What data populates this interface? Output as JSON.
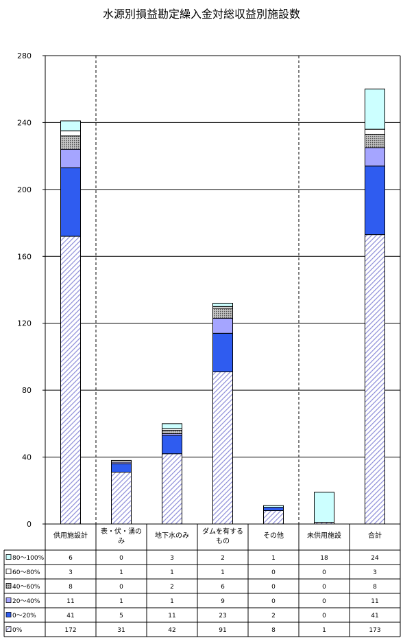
{
  "chart_data": {
    "type": "bar",
    "stacked": true,
    "title": "水源別損益勘定繰入金対総収益別施設数",
    "categories": [
      "供用施設計",
      "表・伏・湧のみ",
      "地下水のみ",
      "ダムを有するもの",
      "その他",
      "未供用施設",
      "合計"
    ],
    "ylim": [
      0,
      280
    ],
    "yticks": [
      0,
      40,
      80,
      120,
      160,
      200,
      240,
      280
    ],
    "grid": true,
    "legend_placement": "data-table-rows",
    "series": [
      {
        "name": "0%",
        "values": [
          172,
          31,
          42,
          91,
          8,
          1,
          173
        ],
        "color": "#8c8cd8",
        "pattern": "diagonal-hatch"
      },
      {
        "name": "0～20%",
        "values": [
          41,
          5,
          11,
          23,
          2,
          0,
          41
        ],
        "color": "#2f5cf0"
      },
      {
        "name": "20～40%",
        "values": [
          11,
          1,
          1,
          9,
          0,
          0,
          11
        ],
        "color": "#a5a5ff"
      },
      {
        "name": "40～60%",
        "values": [
          8,
          0,
          2,
          6,
          0,
          0,
          8
        ],
        "color": "#9a9a9a",
        "pattern": "dots"
      },
      {
        "name": "60～80%",
        "values": [
          3,
          1,
          1,
          1,
          0,
          0,
          3
        ],
        "color": "#ffffff"
      },
      {
        "name": "80～100%",
        "values": [
          6,
          0,
          3,
          2,
          1,
          18,
          24
        ],
        "color": "#ccffff"
      }
    ],
    "table_rows_order": [
      "80～100%",
      "60～80%",
      "40～60%",
      "20～40%",
      "0～20%",
      "0%"
    ]
  }
}
